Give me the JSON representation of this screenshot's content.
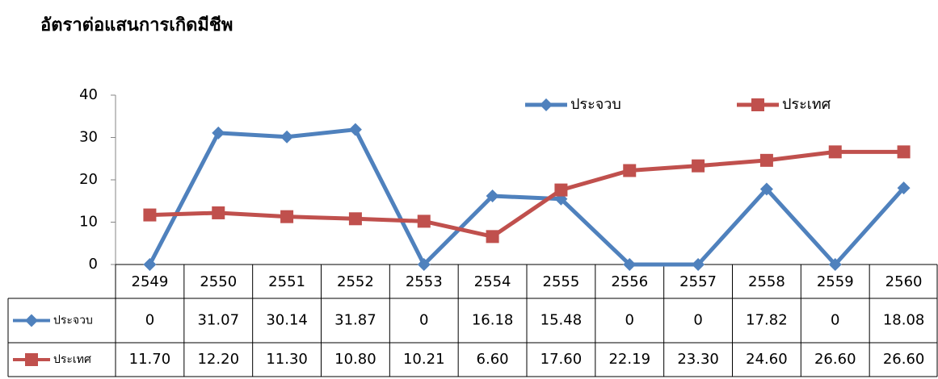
{
  "chart_data": {
    "type": "line",
    "title": "อัตราต่อแสนการเกิดมีชีพ",
    "categories": [
      "2549",
      "2550",
      "2551",
      "2552",
      "2553",
      "2554",
      "2555",
      "2556",
      "2557",
      "2558",
      "2559",
      "2560"
    ],
    "series": [
      {
        "name": "ประจวบ",
        "color": "#4f81bd",
        "marker": "diamond",
        "values": [
          0,
          31.07,
          30.14,
          31.87,
          0,
          16.18,
          15.48,
          0,
          0,
          17.82,
          0,
          18.08
        ]
      },
      {
        "name": "ประเทศ",
        "color": "#c0504d",
        "marker": "square",
        "values": [
          11.7,
          12.2,
          11.3,
          10.8,
          10.21,
          6.6,
          17.6,
          22.19,
          23.3,
          24.6,
          26.6,
          26.6
        ],
        "value_labels": [
          "11.70",
          "12.20",
          "11.30",
          "10.80",
          "10.21",
          "6.60",
          "17.60",
          "22.19",
          "23.30",
          "24.60",
          "26.60",
          "26.60"
        ]
      }
    ],
    "ylim": [
      0,
      40
    ],
    "yticks": [
      0,
      10,
      20,
      30,
      40
    ],
    "grid": false,
    "legend": "top-right",
    "data_table": true
  }
}
